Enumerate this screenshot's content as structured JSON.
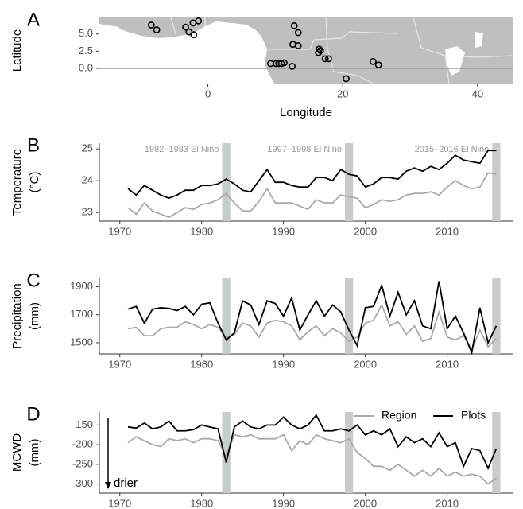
{
  "chart_data": [
    {
      "type": "scatter",
      "panel": "A",
      "xlabel": "Longitude",
      "ylabel": [
        "Latitude"
      ],
      "x": [
        -8.4,
        -7.6,
        -3.3,
        -2.8,
        -2.2,
        -2.1,
        -1.4,
        12.8,
        13.4,
        12.6,
        13.4,
        16.5,
        16.4,
        16.7,
        17.4,
        17.9,
        9.3,
        10.1,
        10.5,
        10.9,
        11.3,
        12.5,
        24.5,
        25.3,
        20.5
      ],
      "values": [
        6.3,
        5.6,
        6.0,
        5.3,
        6.6,
        4.9,
        6.9,
        6.2,
        5.2,
        3.5,
        3.3,
        2.8,
        2.3,
        2.6,
        1.4,
        1.4,
        0.7,
        0.7,
        0.7,
        0.7,
        0.8,
        0.3,
        1.0,
        0.5,
        -1.5
      ],
      "xlim": [
        -16.1,
        45.2
      ],
      "ylim": [
        -2.2,
        7.4
      ],
      "xticks": [
        0,
        20,
        40
      ],
      "yticks": [
        {
          "value": 0,
          "label": "0.0"
        },
        2.5,
        {
          "value": 5,
          "label": "5.0"
        }
      ],
      "reference_line": 0,
      "color": "#000000"
    },
    {
      "type": "line",
      "panel": "B",
      "ylabel": [
        "Temperature",
        "(°C)"
      ],
      "x": [
        1971,
        1972,
        1973,
        1974,
        1975,
        1976,
        1977,
        1978,
        1979,
        1980,
        1981,
        1982,
        1983,
        1984,
        1985,
        1986,
        1987,
        1988,
        1989,
        1990,
        1991,
        1992,
        1993,
        1994,
        1995,
        1996,
        1997,
        1998,
        1999,
        2000,
        2001,
        2002,
        2003,
        2004,
        2005,
        2006,
        2007,
        2008,
        2009,
        2010,
        2011,
        2012,
        2013,
        2014,
        2015,
        2016
      ],
      "series": [
        {
          "color": "#aaaaaa",
          "values": [
            23.15,
            22.95,
            23.3,
            23.05,
            22.95,
            22.85,
            23.0,
            23.15,
            23.1,
            23.25,
            23.3,
            23.4,
            23.6,
            23.3,
            23.05,
            23.05,
            23.35,
            23.75,
            23.3,
            23.3,
            23.3,
            23.2,
            23.1,
            23.4,
            23.3,
            23.3,
            23.55,
            23.5,
            23.45,
            23.15,
            23.25,
            23.4,
            23.35,
            23.4,
            23.55,
            23.6,
            23.6,
            23.65,
            23.55,
            23.8,
            24.0,
            23.85,
            23.75,
            23.8,
            24.25,
            24.2
          ]
        },
        {
          "color": "#000000",
          "values": [
            23.75,
            23.55,
            23.85,
            23.7,
            23.55,
            23.45,
            23.55,
            23.7,
            23.7,
            23.85,
            23.85,
            23.9,
            24.05,
            23.9,
            23.7,
            23.65,
            24.0,
            24.35,
            23.95,
            23.95,
            23.85,
            23.8,
            23.8,
            24.1,
            24.1,
            24.0,
            24.35,
            24.2,
            24.15,
            23.8,
            23.9,
            24.1,
            24.1,
            24.05,
            24.3,
            24.4,
            24.3,
            24.45,
            24.35,
            24.55,
            24.8,
            24.65,
            24.6,
            24.55,
            24.95,
            24.95
          ]
        }
      ],
      "events": [
        {
          "label": "1982–1983 El Niño",
          "start": 1982.5,
          "end": 1983.5
        },
        {
          "label": "1997–1998 El Niño",
          "start": 1997.5,
          "end": 1998.5
        },
        {
          "label": "2015–2016 El Niño",
          "start": 2015.5,
          "end": 2016.5
        }
      ],
      "xlim": [
        1967.5,
        2018
      ],
      "xticks": [
        1970,
        1980,
        1990,
        2000,
        2010
      ],
      "ylim": [
        22.73,
        25.18
      ],
      "yticks": [
        23,
        24,
        25
      ]
    },
    {
      "type": "line",
      "panel": "C",
      "ylabel": [
        "Precipitation",
        "(mm)"
      ],
      "x": [
        1971,
        1972,
        1973,
        1974,
        1975,
        1976,
        1977,
        1978,
        1979,
        1980,
        1981,
        1982,
        1983,
        1984,
        1985,
        1986,
        1987,
        1988,
        1989,
        1990,
        1991,
        1992,
        1993,
        1994,
        1995,
        1996,
        1997,
        1998,
        1999,
        2000,
        2001,
        2002,
        2003,
        2004,
        2005,
        2006,
        2007,
        2008,
        2009,
        2010,
        2011,
        2012,
        2013,
        2014,
        2015,
        2016
      ],
      "series": [
        {
          "color": "#aaaaaa",
          "values": [
            1600,
            1610,
            1550,
            1550,
            1600,
            1610,
            1610,
            1650,
            1630,
            1600,
            1630,
            1610,
            1540,
            1560,
            1640,
            1620,
            1540,
            1640,
            1660,
            1650,
            1620,
            1520,
            1580,
            1620,
            1550,
            1600,
            1570,
            1510,
            1540,
            1640,
            1660,
            1770,
            1620,
            1650,
            1560,
            1620,
            1510,
            1530,
            1720,
            1540,
            1520,
            1550,
            1450,
            1590,
            1470,
            1530
          ]
        },
        {
          "color": "#000000",
          "values": [
            1740,
            1760,
            1640,
            1740,
            1750,
            1745,
            1730,
            1760,
            1700,
            1775,
            1785,
            1640,
            1520,
            1570,
            1800,
            1770,
            1630,
            1800,
            1780,
            1690,
            1820,
            1590,
            1700,
            1800,
            1690,
            1770,
            1720,
            1590,
            1480,
            1750,
            1760,
            1910,
            1690,
            1860,
            1700,
            1800,
            1620,
            1600,
            1940,
            1600,
            1690,
            1570,
            1430,
            1750,
            1500,
            1620
          ]
        }
      ],
      "events": [
        {
          "start": 1982.5,
          "end": 1983.5
        },
        {
          "start": 1997.5,
          "end": 1998.5
        },
        {
          "start": 2015.5,
          "end": 2016.5
        }
      ],
      "xlim": [
        1967.5,
        2018
      ],
      "xticks": [
        1970,
        1980,
        1990,
        2000,
        2010
      ],
      "ylim": [
        1420,
        1960
      ],
      "yticks": [
        1500,
        1700,
        1900
      ]
    },
    {
      "type": "line",
      "panel": "D",
      "ylabel": [
        "MCWD",
        "(mm)"
      ],
      "annotation": "drier",
      "legend": "top-right",
      "x": [
        1971,
        1972,
        1973,
        1974,
        1975,
        1976,
        1977,
        1978,
        1979,
        1980,
        1981,
        1982,
        1983,
        1984,
        1985,
        1986,
        1987,
        1988,
        1989,
        1990,
        1991,
        1992,
        1993,
        1994,
        1995,
        1996,
        1997,
        1998,
        1999,
        2000,
        2001,
        2002,
        2003,
        2004,
        2005,
        2006,
        2007,
        2008,
        2009,
        2010,
        2011,
        2012,
        2013,
        2014,
        2015,
        2016
      ],
      "series": [
        {
          "name": "Region",
          "color": "#aaaaaa",
          "values": [
            -195,
            -180,
            -190,
            -200,
            -205,
            -185,
            -190,
            -185,
            -195,
            -185,
            -185,
            -190,
            -230,
            -175,
            -180,
            -175,
            -185,
            -185,
            -185,
            -175,
            -215,
            -190,
            -200,
            -175,
            -185,
            -190,
            -195,
            -185,
            -220,
            -235,
            -255,
            -255,
            -265,
            -250,
            -265,
            -280,
            -265,
            -280,
            -260,
            -280,
            -270,
            -280,
            -275,
            -280,
            -300,
            -285
          ]
        },
        {
          "name": "Plots",
          "color": "#000000",
          "values": [
            -155,
            -158,
            -145,
            -160,
            -155,
            -140,
            -165,
            -165,
            -162,
            -150,
            -155,
            -160,
            -245,
            -155,
            -140,
            -155,
            -160,
            -150,
            -150,
            -130,
            -150,
            -160,
            -150,
            -125,
            -165,
            -165,
            -160,
            -165,
            -150,
            -175,
            -165,
            -175,
            -160,
            -205,
            -180,
            -195,
            -185,
            -205,
            -170,
            -205,
            -195,
            -255,
            -210,
            -215,
            -260,
            -210
          ]
        }
      ],
      "events": [
        {
          "start": 1982.5,
          "end": 1983.5
        },
        {
          "start": 1997.5,
          "end": 1998.5
        },
        {
          "start": 2015.5,
          "end": 2016.5
        }
      ],
      "xlim": [
        1967.5,
        2018
      ],
      "xticks": [
        1970,
        1980,
        1990,
        2000,
        2010
      ],
      "ylim": [
        -323,
        -117
      ],
      "yticks": [
        -300,
        -250,
        -200,
        -150
      ]
    }
  ]
}
